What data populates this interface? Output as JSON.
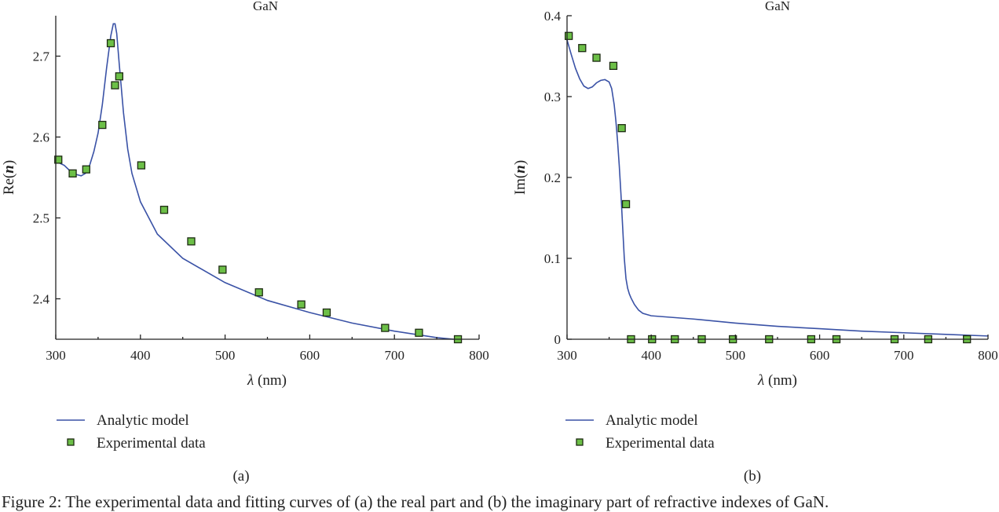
{
  "colors": {
    "model_line": "#3a52a6",
    "marker_fill": "#6cbf47",
    "marker_edge": "#1d2b12",
    "axis": "#222222"
  },
  "legend": {
    "model_label": "Analytic model",
    "data_label": "Experimental data"
  },
  "caption": "Figure 2: The experimental data and fitting curves of (a) the real part and (b) the imaginary part of refractive indexes of GaN.",
  "chart_data": [
    {
      "type": "line",
      "panel_label": "(a)",
      "title": "GaN",
      "xlabel_symbol": "λ",
      "xlabel_unit": " (nm)",
      "ylabel_prefix": "Re(",
      "ylabel_var": "n",
      "ylabel_suffix": ")",
      "xlim": [
        300,
        800
      ],
      "ylim": [
        2.35,
        2.75
      ],
      "xticks": [
        300,
        400,
        500,
        600,
        700,
        800
      ],
      "yticks": [
        2.4,
        2.5,
        2.6,
        2.7
      ],
      "ytick_labels": [
        "2.4",
        "2.5",
        "2.6",
        "2.7"
      ],
      "grid": false,
      "series": [
        {
          "name": "Analytic model",
          "kind": "line",
          "x": [
            300,
            310,
            320,
            330,
            335,
            340,
            345,
            350,
            355,
            360,
            365,
            368,
            370,
            372,
            375,
            380,
            385,
            390,
            400,
            420,
            450,
            500,
            550,
            600,
            650,
            700,
            750,
            770
          ],
          "y": [
            2.57,
            2.565,
            2.555,
            2.552,
            2.555,
            2.565,
            2.582,
            2.605,
            2.64,
            2.685,
            2.725,
            2.74,
            2.74,
            2.728,
            2.69,
            2.63,
            2.585,
            2.555,
            2.52,
            2.48,
            2.45,
            2.42,
            2.398,
            2.383,
            2.37,
            2.36,
            2.352,
            2.35
          ]
        },
        {
          "name": "Experimental data",
          "kind": "scatter",
          "x": [
            303,
            320,
            336,
            355,
            365,
            370,
            375,
            401,
            428,
            460,
            497,
            540,
            590,
            620,
            689,
            729,
            775
          ],
          "y": [
            2.572,
            2.555,
            2.56,
            2.615,
            2.716,
            2.664,
            2.675,
            2.565,
            2.51,
            2.471,
            2.436,
            2.408,
            2.393,
            2.383,
            2.364,
            2.358,
            2.35
          ]
        }
      ]
    },
    {
      "type": "line",
      "panel_label": "(b)",
      "title": "GaN",
      "xlabel_symbol": "λ",
      "xlabel_unit": " (nm)",
      "ylabel_prefix": "Im(",
      "ylabel_var": "n",
      "ylabel_suffix": ")",
      "xlim": [
        300,
        800
      ],
      "ylim": [
        0,
        0.4
      ],
      "xticks": [
        300,
        400,
        500,
        600,
        700,
        800
      ],
      "yticks": [
        0,
        0.1,
        0.2,
        0.3,
        0.4
      ],
      "ytick_labels": [
        "0",
        "0.1",
        "0.2",
        "0.3",
        "0.4"
      ],
      "grid": false,
      "series": [
        {
          "name": "Analytic model",
          "kind": "line",
          "x": [
            300,
            305,
            310,
            315,
            320,
            325,
            330,
            335,
            340,
            345,
            350,
            353,
            356,
            358,
            360,
            362,
            364,
            366,
            368,
            370,
            372,
            374,
            376,
            380,
            385,
            390,
            400,
            450,
            500,
            550,
            600,
            650,
            700,
            750,
            800
          ],
          "y": [
            0.37,
            0.352,
            0.335,
            0.322,
            0.313,
            0.31,
            0.312,
            0.317,
            0.32,
            0.321,
            0.318,
            0.31,
            0.29,
            0.27,
            0.245,
            0.215,
            0.18,
            0.14,
            0.1,
            0.075,
            0.063,
            0.056,
            0.051,
            0.043,
            0.036,
            0.032,
            0.029,
            0.025,
            0.02,
            0.016,
            0.013,
            0.01,
            0.008,
            0.006,
            0.004
          ]
        },
        {
          "name": "Experimental data",
          "kind": "scatter",
          "x": [
            302,
            318,
            335,
            355,
            365,
            370,
            376,
            401,
            428,
            460,
            497,
            540,
            590,
            620,
            689,
            729,
            775
          ],
          "y": [
            0.375,
            0.36,
            0.348,
            0.338,
            0.261,
            0.167,
            0.0,
            0.0,
            0.0,
            0.0,
            0.0,
            0.0,
            0.0,
            0.0,
            0.0,
            0.0,
            0.0
          ]
        }
      ]
    }
  ]
}
